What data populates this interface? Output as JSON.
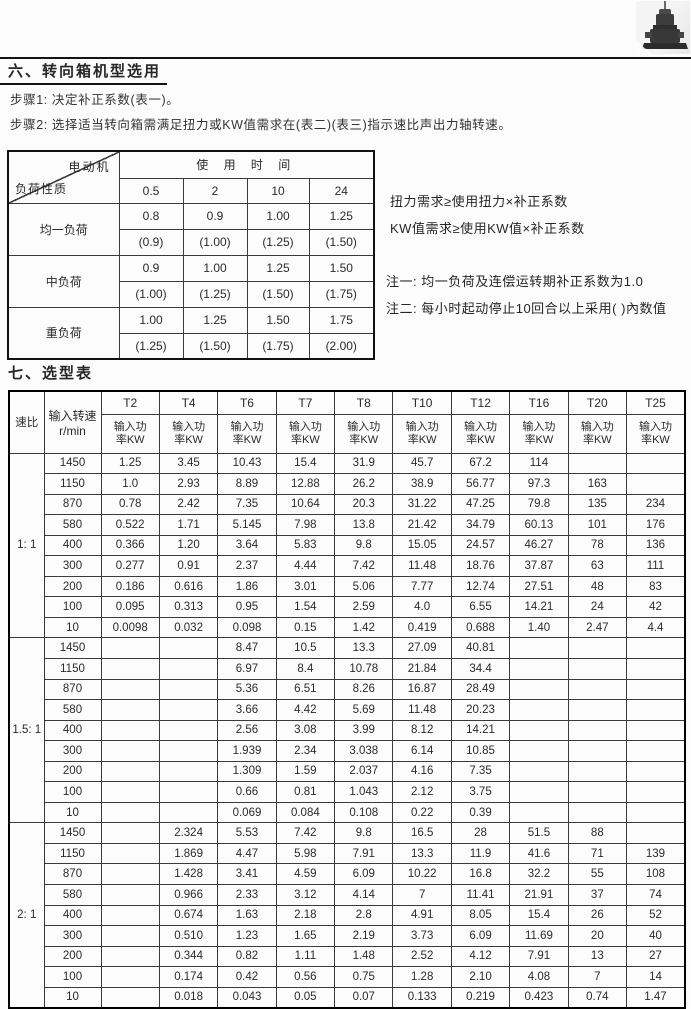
{
  "page": {
    "title6": "六、转向箱机型选用",
    "step1": "步骤1: 决定补正系数(表一)。",
    "step2": "步骤2: 选择适当转向箱需满足扭力或KW值需求在(表二)(表三)指示速比声出力轴转速。",
    "title7": "七、选型表",
    "gearbox_photo_icon": "gearbox-photo-icon"
  },
  "formulas": [
    "扭力需求≥使用扭力×补正系数",
    "KW值需求≥使用KW值×补正系数"
  ],
  "notes": [
    "注一: 均一负荷及连偿运转期补正系数为1.0",
    "注二: 每小时起动停止10回合以上采用( )內数值"
  ],
  "correction_table": {
    "corner_top": "电动机",
    "corner_bottom": "负荷性质",
    "usage_time_header": "使 用 时 间",
    "time_columns": [
      "0.5",
      "2",
      "10",
      "24"
    ],
    "rows": [
      {
        "label": "均一负荷",
        "primary": [
          "0.8",
          "0.9",
          "1.00",
          "1.25"
        ],
        "secondary": [
          "(0.9)",
          "(1.00)",
          "(1.25)",
          "(1.50)"
        ]
      },
      {
        "label": "中负荷",
        "primary": [
          "0.9",
          "1.00",
          "1.25",
          "1.50"
        ],
        "secondary": [
          "(1.00)",
          "(1.25)",
          "(1.50)",
          "(1.75)"
        ]
      },
      {
        "label": "重负荷",
        "primary": [
          "1.00",
          "1.25",
          "1.50",
          "1.75"
        ],
        "secondary": [
          "(1.25)",
          "(1.50)",
          "(1.75)",
          "(2.00)"
        ]
      }
    ]
  },
  "selection_table": {
    "col_speed_ratio": "速比",
    "col_input_speed": "输入转速\nr/min",
    "power_label": "输入功\n率KW",
    "models": [
      "T2",
      "T4",
      "T6",
      "T7",
      "T8",
      "T10",
      "T12",
      "T16",
      "T20",
      "T25"
    ],
    "sections": [
      {
        "ratio": "1: 1",
        "rows": [
          {
            "rpm": "1450",
            "values": [
              "1.25",
              "3.45",
              "10.43",
              "15.4",
              "31.9",
              "45.7",
              "67.2",
              "114",
              "",
              ""
            ]
          },
          {
            "rpm": "1150",
            "values": [
              "1.0",
              "2.93",
              "8.89",
              "12.88",
              "26.2",
              "38.9",
              "56.77",
              "97.3",
              "163",
              ""
            ]
          },
          {
            "rpm": "870",
            "values": [
              "0.78",
              "2.42",
              "7.35",
              "10.64",
              "20.3",
              "31.22",
              "47.25",
              "79.8",
              "135",
              "234"
            ]
          },
          {
            "rpm": "580",
            "values": [
              "0.522",
              "1.71",
              "5.145",
              "7.98",
              "13.8",
              "21.42",
              "34.79",
              "60.13",
              "101",
              "176"
            ]
          },
          {
            "rpm": "400",
            "values": [
              "0.366",
              "1.20",
              "3.64",
              "5.83",
              "9.8",
              "15.05",
              "24.57",
              "46.27",
              "78",
              "136"
            ]
          },
          {
            "rpm": "300",
            "values": [
              "0.277",
              "0.91",
              "2.37",
              "4.44",
              "7.42",
              "11.48",
              "18.76",
              "37.87",
              "63",
              "111"
            ]
          },
          {
            "rpm": "200",
            "values": [
              "0.186",
              "0.616",
              "1.86",
              "3.01",
              "5.06",
              "7.77",
              "12.74",
              "27.51",
              "48",
              "83"
            ]
          },
          {
            "rpm": "100",
            "values": [
              "0.095",
              "0.313",
              "0.95",
              "1.54",
              "2.59",
              "4.0",
              "6.55",
              "14.21",
              "24",
              "42"
            ]
          },
          {
            "rpm": "10",
            "values": [
              "0.0098",
              "0.032",
              "0.098",
              "0.15",
              "1.42",
              "0.419",
              "0.688",
              "1.40",
              "2.47",
              "4.4"
            ]
          }
        ]
      },
      {
        "ratio": "1.5: 1",
        "rows": [
          {
            "rpm": "1450",
            "values": [
              "",
              "",
              "8.47",
              "10.5",
              "13.3",
              "27.09",
              "40.81",
              "",
              "",
              ""
            ]
          },
          {
            "rpm": "1150",
            "values": [
              "",
              "",
              "6.97",
              "8.4",
              "10.78",
              "21.84",
              "34.4",
              "",
              "",
              ""
            ]
          },
          {
            "rpm": "870",
            "values": [
              "",
              "",
              "5.36",
              "6.51",
              "8.26",
              "16.87",
              "28.49",
              "",
              "",
              ""
            ]
          },
          {
            "rpm": "580",
            "values": [
              "",
              "",
              "3.66",
              "4.42",
              "5.69",
              "11.48",
              "20.23",
              "",
              "",
              ""
            ]
          },
          {
            "rpm": "400",
            "values": [
              "",
              "",
              "2.56",
              "3.08",
              "3.99",
              "8.12",
              "14.21",
              "",
              "",
              ""
            ]
          },
          {
            "rpm": "300",
            "values": [
              "",
              "",
              "1.939",
              "2.34",
              "3.038",
              "6.14",
              "10.85",
              "",
              "",
              ""
            ]
          },
          {
            "rpm": "200",
            "values": [
              "",
              "",
              "1.309",
              "1.59",
              "2.037",
              "4.16",
              "7.35",
              "",
              "",
              ""
            ]
          },
          {
            "rpm": "100",
            "values": [
              "",
              "",
              "0.66",
              "0.81",
              "1.043",
              "2.12",
              "3.75",
              "",
              "",
              ""
            ]
          },
          {
            "rpm": "10",
            "values": [
              "",
              "",
              "0.069",
              "0.084",
              "0.108",
              "0.22",
              "0.39",
              "",
              "",
              ""
            ]
          }
        ]
      },
      {
        "ratio": "2: 1",
        "rows": [
          {
            "rpm": "1450",
            "values": [
              "",
              "2.324",
              "5.53",
              "7.42",
              "9.8",
              "16.5",
              "28",
              "51.5",
              "88",
              ""
            ]
          },
          {
            "rpm": "1150",
            "values": [
              "",
              "1.869",
              "4.47",
              "5.98",
              "7.91",
              "13.3",
              "11.9",
              "41.6",
              "71",
              "139"
            ]
          },
          {
            "rpm": "870",
            "values": [
              "",
              "1.428",
              "3.41",
              "4.59",
              "6.09",
              "10.22",
              "16.8",
              "32.2",
              "55",
              "108"
            ]
          },
          {
            "rpm": "580",
            "values": [
              "",
              "0.966",
              "2.33",
              "3.12",
              "4.14",
              "7",
              "11.41",
              "21.91",
              "37",
              "74"
            ]
          },
          {
            "rpm": "400",
            "values": [
              "",
              "0.674",
              "1.63",
              "2.18",
              "2.8",
              "4.91",
              "8.05",
              "15.4",
              "26",
              "52"
            ]
          },
          {
            "rpm": "300",
            "values": [
              "",
              "0.510",
              "1.23",
              "1.65",
              "2.19",
              "3.73",
              "6.09",
              "11.69",
              "20",
              "40"
            ]
          },
          {
            "rpm": "200",
            "values": [
              "",
              "0.344",
              "0.82",
              "1.11",
              "1.48",
              "2.52",
              "4.12",
              "7.91",
              "13",
              "27"
            ]
          },
          {
            "rpm": "100",
            "values": [
              "",
              "0.174",
              "0.42",
              "0.56",
              "0.75",
              "1.28",
              "2.10",
              "4.08",
              "7",
              "14"
            ]
          },
          {
            "rpm": "10",
            "values": [
              "",
              "0.018",
              "0.043",
              "0.05",
              "0.07",
              "0.133",
              "0.219",
              "0.423",
              "0.74",
              "1.47"
            ]
          }
        ]
      }
    ]
  }
}
